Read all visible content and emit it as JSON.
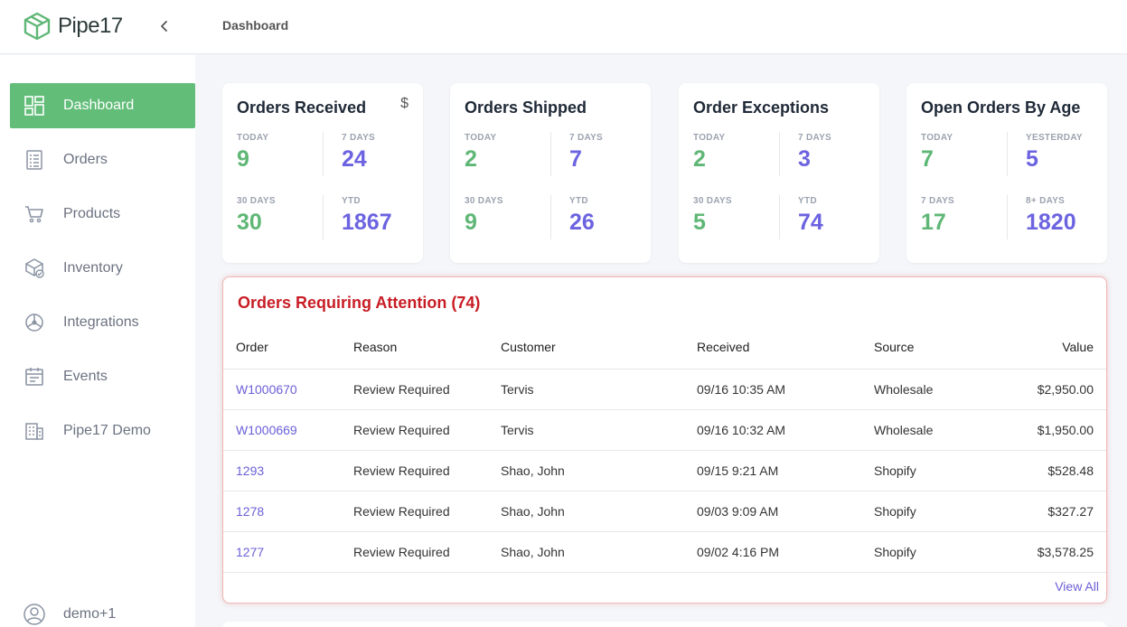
{
  "app": {
    "name": "Pipe17",
    "page_title": "Dashboard"
  },
  "sidebar": {
    "items": [
      {
        "label": "Dashboard",
        "icon": "dashboard-icon",
        "active": true
      },
      {
        "label": "Orders",
        "icon": "orders-icon"
      },
      {
        "label": "Products",
        "icon": "cart-icon"
      },
      {
        "label": "Inventory",
        "icon": "inventory-icon"
      },
      {
        "label": "Integrations",
        "icon": "integrations-icon"
      },
      {
        "label": "Events",
        "icon": "calendar-icon"
      },
      {
        "label": "Pipe17 Demo",
        "icon": "building-icon"
      }
    ],
    "user": {
      "label": "demo+1",
      "icon": "user-icon"
    }
  },
  "cards": [
    {
      "title": "Orders Received",
      "icon": "$",
      "stats": [
        {
          "label": "TODAY",
          "value": "9"
        },
        {
          "label": "7 DAYS",
          "value": "24"
        },
        {
          "label": "30 DAYS",
          "value": "30"
        },
        {
          "label": "YTD",
          "value": "1867"
        }
      ]
    },
    {
      "title": "Orders Shipped",
      "stats": [
        {
          "label": "TODAY",
          "value": "2"
        },
        {
          "label": "7 DAYS",
          "value": "7"
        },
        {
          "label": "30 DAYS",
          "value": "9"
        },
        {
          "label": "YTD",
          "value": "26"
        }
      ]
    },
    {
      "title": "Order Exceptions",
      "stats": [
        {
          "label": "TODAY",
          "value": "2"
        },
        {
          "label": "7 DAYS",
          "value": "3"
        },
        {
          "label": "30 DAYS",
          "value": "5"
        },
        {
          "label": "YTD",
          "value": "74"
        }
      ]
    },
    {
      "title": "Open Orders By Age",
      "stats": [
        {
          "label": "TODAY",
          "value": "7"
        },
        {
          "label": "YESTERDAY",
          "value": "5"
        },
        {
          "label": "7 DAYS",
          "value": "17"
        },
        {
          "label": "8+ DAYS",
          "value": "1820"
        }
      ]
    }
  ],
  "attention": {
    "title": "Orders Requiring Attention (74)",
    "columns": [
      "Order",
      "Reason",
      "Customer",
      "Received",
      "Source",
      "Value"
    ],
    "rows": [
      [
        "W1000670",
        "Review Required",
        "Tervis",
        "09/16 10:35 AM",
        "Wholesale",
        "$2,950.00"
      ],
      [
        "W1000669",
        "Review Required",
        "Tervis",
        "09/16 10:32 AM",
        "Wholesale",
        "$1,950.00"
      ],
      [
        "1293",
        "Review Required",
        "Shao, John",
        "09/15 9:21 AM",
        "Shopify",
        "$528.48"
      ],
      [
        "1278",
        "Review Required",
        "Shao, John",
        "09/03 9:09 AM",
        "Shopify",
        "$327.27"
      ],
      [
        "1277",
        "Review Required",
        "Shao, John",
        "09/02 4:16 PM",
        "Shopify",
        "$3,578.25"
      ]
    ],
    "view_all": "View All"
  },
  "colors": {
    "accent_green": "#62bd79",
    "value_green": "#5fb776",
    "value_purple": "#6c63e0",
    "alert_red": "#c81d25",
    "link": "#6a5fd8"
  }
}
